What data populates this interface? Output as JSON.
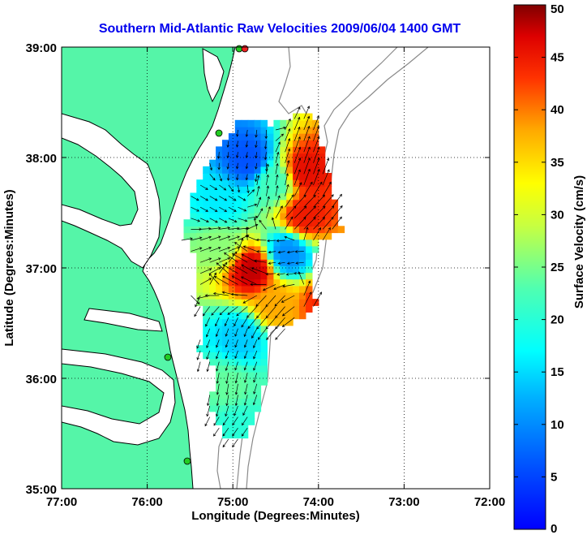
{
  "title": "Southern Mid-Atlantic Raw Velocities 2009/06/04 1400 GMT",
  "title_color": "#0000ee",
  "xlabel": "Longitude (Degrees:Minutes)",
  "ylabel": "Latitude (Degrees:Minutes)",
  "colorbar_label": "Surface Velocity (cm/s)",
  "x_ticks": [
    "77:00",
    "76:00",
    "75:00",
    "74:00",
    "73:00",
    "72:00"
  ],
  "y_ticks": [
    "39:00",
    "38:00",
    "37:00",
    "36:00",
    "35:00"
  ],
  "colorbar_ticks": [
    "50",
    "45",
    "40",
    "35",
    "30",
    "25",
    "20",
    "15",
    "10",
    "5",
    "0"
  ],
  "colors": {
    "land": "#55f5a8",
    "coastline": "#000000",
    "bathymetry": "#8a8a8a",
    "grid": "#000000",
    "station_marker": "#22cc22",
    "station_marker_red": "#ee2222"
  },
  "chart_data": {
    "type": "heatmap",
    "title": "Southern Mid-Atlantic Raw Velocities 2009/06/04 1400 GMT",
    "xlabel": "Longitude (Degrees:Minutes)",
    "ylabel": "Latitude (Degrees:Minutes)",
    "xlim": [
      -77.0,
      -72.0
    ],
    "ylim": [
      35.0,
      39.0
    ],
    "colorbar": {
      "label": "Surface Velocity (cm/s)",
      "range": [
        0,
        50
      ],
      "colormap": "jet"
    },
    "grid": true,
    "velocity_regions": [
      {
        "lon": -74.85,
        "lat": 37.95,
        "speed": 6,
        "dir": 190
      },
      {
        "lon": -74.55,
        "lat": 37.75,
        "speed": 22,
        "dir": 10
      },
      {
        "lon": -74.2,
        "lat": 37.85,
        "speed": 46,
        "dir": 20
      },
      {
        "lon": -74.2,
        "lat": 37.45,
        "speed": 45,
        "dir": 45
      },
      {
        "lon": -75.2,
        "lat": 37.55,
        "speed": 16,
        "dir": 120
      },
      {
        "lon": -75.2,
        "lat": 37.2,
        "speed": 26,
        "dir": 70
      },
      {
        "lon": -74.8,
        "lat": 36.95,
        "speed": 48,
        "dir": 300
      },
      {
        "lon": -74.4,
        "lat": 37.1,
        "speed": 10,
        "dir": 260
      },
      {
        "lon": -74.55,
        "lat": 36.65,
        "speed": 38,
        "dir": 220
      },
      {
        "lon": -74.95,
        "lat": 36.35,
        "speed": 14,
        "dir": 200
      },
      {
        "lon": -75.1,
        "lat": 35.9,
        "speed": 24,
        "dir": 190
      },
      {
        "lon": -75.0,
        "lat": 35.55,
        "speed": 20,
        "dir": 215
      },
      {
        "lon": -73.95,
        "lat": 36.65,
        "speed": 44,
        "dir": 30
      }
    ]
  }
}
